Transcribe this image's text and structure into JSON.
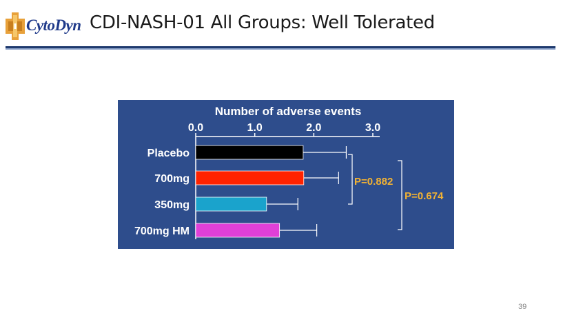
{
  "header": {
    "logo_text": "CytoDyn",
    "title": "CDI-NASH-01 All Groups: Well Tolerated"
  },
  "colors": {
    "panel_bg": "#2e4d8c",
    "text": "#ffffff",
    "pvalue": "#f2b233",
    "bracket": "#ffffff"
  },
  "chart_data": {
    "type": "bar",
    "orientation": "horizontal",
    "title": "Number of adverse events",
    "axis_position": "top",
    "xlim": [
      0,
      3.0
    ],
    "ticks": [
      0,
      1.0,
      2.0,
      3.0
    ],
    "tick_labels": [
      "0.0",
      "1.0",
      "2.0",
      "3.0"
    ],
    "categories": [
      "Placebo",
      "700mg",
      "350mg",
      "700mg HM"
    ],
    "values": [
      1.82,
      1.83,
      1.2,
      1.42
    ],
    "error_upper": [
      2.55,
      2.42,
      1.73,
      2.05
    ],
    "colors": [
      "#000000",
      "#ff2200",
      "#1aa3cc",
      "#e040d8"
    ],
    "annotations": [
      {
        "label": "P=0.882",
        "groups": [
          "Placebo",
          "700mg",
          "350mg"
        ]
      },
      {
        "label": "P=0.674",
        "groups": [
          "Placebo",
          "700mg",
          "350mg",
          "700mg HM"
        ]
      }
    ]
  },
  "footer": {
    "page_number": "39"
  }
}
